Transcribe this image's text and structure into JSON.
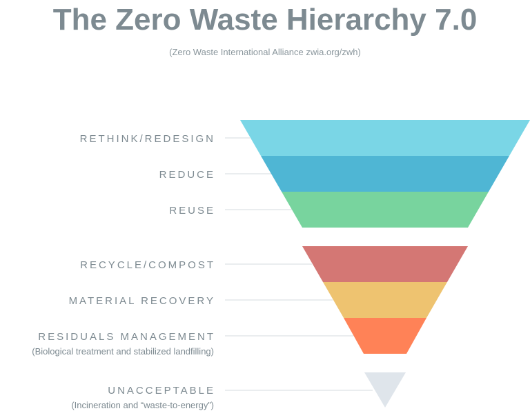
{
  "header": {
    "title": "The Zero Waste Hierarchy 7.0",
    "subtitle": "(Zero Waste International Alliance zwia.org/zwh)"
  },
  "levels": [
    {
      "label": "RETHINK/REDESIGN",
      "color": "#7ad6e6"
    },
    {
      "label": "REDUCE",
      "color": "#4fb6d4"
    },
    {
      "label": "REUSE",
      "color": "#78d49e"
    },
    {
      "label": "RECYCLE/COMPOST",
      "color": "#d47774"
    },
    {
      "label": "MATERIAL RECOVERY",
      "color": "#eec370"
    },
    {
      "label": "RESIDUALS MANAGEMENT",
      "note": "(Biological treatment and stabilized landfilling)",
      "color": "#ff8257"
    },
    {
      "label": "UNACCEPTABLE",
      "note": "(Incineration and “waste-to-energy”)",
      "color": "#dfe5eb"
    }
  ]
}
